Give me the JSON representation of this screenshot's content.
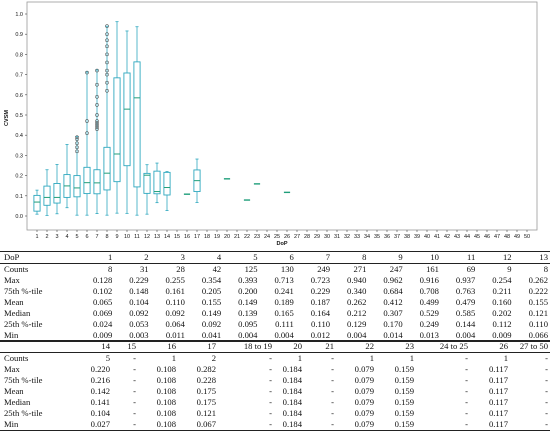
{
  "chart_data": {
    "type": "box",
    "xlabel": "DoP",
    "ylabel": "CVSM",
    "ylim": [
      0,
      1.0
    ],
    "yticks": [
      "0.0",
      "0.1",
      "0.2",
      "0.3",
      "0.4",
      "0.5",
      "0.6",
      "0.7",
      "0.8",
      "0.9",
      "1.0"
    ],
    "xticks": [
      "1",
      "2",
      "3",
      "4",
      "5",
      "6",
      "7",
      "8",
      "9",
      "10",
      "11",
      "12",
      "13",
      "14",
      "15",
      "16",
      "17",
      "18",
      "19",
      "20",
      "21",
      "22",
      "23",
      "24",
      "25",
      "26",
      "27",
      "28",
      "29",
      "30",
      "31",
      "32",
      "33",
      "34",
      "35",
      "36",
      "37",
      "38",
      "39",
      "40",
      "41",
      "42",
      "43",
      "44",
      "45",
      "46",
      "47",
      "48",
      "49",
      "50"
    ],
    "box_color": "#2fa8bf",
    "median_color": "#1f9e7a",
    "boxes": [
      {
        "x": 1,
        "min": 0.009,
        "q1": 0.024,
        "median": 0.069,
        "q3": 0.102,
        "max": 0.128,
        "outliers": []
      },
      {
        "x": 2,
        "min": 0.003,
        "q1": 0.053,
        "median": 0.092,
        "q3": 0.148,
        "max": 0.229,
        "outliers": []
      },
      {
        "x": 3,
        "min": 0.011,
        "q1": 0.064,
        "median": 0.092,
        "q3": 0.161,
        "max": 0.255,
        "outliers": []
      },
      {
        "x": 4,
        "min": 0.041,
        "q1": 0.092,
        "median": 0.149,
        "q3": 0.205,
        "max": 0.354,
        "outliers": []
      },
      {
        "x": 5,
        "min": 0.004,
        "q1": 0.095,
        "median": 0.139,
        "q3": 0.2,
        "max": 0.393,
        "outliers": [
          0.32,
          0.34,
          0.36,
          0.38,
          0.39
        ]
      },
      {
        "x": 6,
        "min": 0.004,
        "q1": 0.111,
        "median": 0.165,
        "q3": 0.241,
        "max": 0.713,
        "outliers": [
          0.41,
          0.47,
          0.71
        ]
      },
      {
        "x": 7,
        "min": 0.012,
        "q1": 0.11,
        "median": 0.164,
        "q3": 0.229,
        "max": 0.723,
        "outliers": [
          0.43,
          0.44,
          0.45,
          0.46,
          0.47,
          0.5,
          0.55,
          0.59,
          0.65,
          0.72
        ]
      },
      {
        "x": 8,
        "min": 0.004,
        "q1": 0.129,
        "median": 0.212,
        "q3": 0.34,
        "max": 0.94,
        "outliers": [
          0.62,
          0.66,
          0.7,
          0.72,
          0.76,
          0.8,
          0.84,
          0.87,
          0.9,
          0.94
        ]
      },
      {
        "x": 9,
        "min": 0.014,
        "q1": 0.17,
        "median": 0.307,
        "q3": 0.684,
        "max": 0.962,
        "outliers": []
      },
      {
        "x": 10,
        "min": 0.013,
        "q1": 0.249,
        "median": 0.529,
        "q3": 0.708,
        "max": 0.916,
        "outliers": []
      },
      {
        "x": 11,
        "min": 0.004,
        "q1": 0.144,
        "median": 0.585,
        "q3": 0.763,
        "max": 0.937,
        "outliers": []
      },
      {
        "x": 12,
        "min": 0.009,
        "q1": 0.112,
        "median": 0.202,
        "q3": 0.211,
        "max": 0.254,
        "outliers": []
      },
      {
        "x": 13,
        "min": 0.066,
        "q1": 0.11,
        "median": 0.121,
        "q3": 0.222,
        "max": 0.262,
        "outliers": []
      },
      {
        "x": 14,
        "min": 0.027,
        "q1": 0.104,
        "median": 0.141,
        "q3": 0.216,
        "max": 0.22,
        "outliers": []
      },
      {
        "x": 16,
        "min": 0.108,
        "q1": 0.108,
        "median": 0.108,
        "q3": 0.108,
        "max": 0.108,
        "outliers": []
      },
      {
        "x": 17,
        "min": 0.067,
        "q1": 0.121,
        "median": 0.175,
        "q3": 0.228,
        "max": 0.282,
        "outliers": []
      },
      {
        "x": 20,
        "min": 0.184,
        "q1": 0.184,
        "median": 0.184,
        "q3": 0.184,
        "max": 0.184,
        "outliers": []
      },
      {
        "x": 22,
        "min": 0.079,
        "q1": 0.079,
        "median": 0.079,
        "q3": 0.079,
        "max": 0.079,
        "outliers": []
      },
      {
        "x": 23,
        "min": 0.159,
        "q1": 0.159,
        "median": 0.159,
        "q3": 0.159,
        "max": 0.159,
        "outliers": []
      },
      {
        "x": 26,
        "min": 0.117,
        "q1": 0.117,
        "median": 0.117,
        "q3": 0.117,
        "max": 0.117,
        "outliers": []
      }
    ]
  },
  "table_top": {
    "header": [
      "DoP",
      "1",
      "2",
      "3",
      "4",
      "5",
      "6",
      "7",
      "8",
      "9",
      "10",
      "11",
      "12",
      "13"
    ],
    "rows": [
      {
        "label": "Counts",
        "values": [
          "8",
          "31",
          "28",
          "42",
          "125",
          "130",
          "249",
          "271",
          "247",
          "161",
          "69",
          "9",
          "8"
        ]
      },
      {
        "label": "Max",
        "values": [
          "0.128",
          "0.229",
          "0.255",
          "0.354",
          "0.393",
          "0.713",
          "0.723",
          "0.940",
          "0.962",
          "0.916",
          "0.937",
          "0.254",
          "0.262"
        ]
      },
      {
        "label": "75th %-tile",
        "values": [
          "0.102",
          "0.148",
          "0.161",
          "0.205",
          "0.200",
          "0.241",
          "0.229",
          "0.340",
          "0.684",
          "0.708",
          "0.763",
          "0.211",
          "0.222"
        ]
      },
      {
        "label": "Mean",
        "values": [
          "0.065",
          "0.104",
          "0.110",
          "0.155",
          "0.149",
          "0.189",
          "0.187",
          "0.262",
          "0.412",
          "0.499",
          "0.479",
          "0.160",
          "0.155"
        ]
      },
      {
        "label": "Median",
        "values": [
          "0.069",
          "0.092",
          "0.092",
          "0.149",
          "0.139",
          "0.165",
          "0.164",
          "0.212",
          "0.307",
          "0.529",
          "0.585",
          "0.202",
          "0.121"
        ]
      },
      {
        "label": "25th %-tile",
        "values": [
          "0.024",
          "0.053",
          "0.064",
          "0.092",
          "0.095",
          "0.111",
          "0.110",
          "0.129",
          "0.170",
          "0.249",
          "0.144",
          "0.112",
          "0.110"
        ]
      },
      {
        "label": "Min",
        "values": [
          "0.009",
          "0.003",
          "0.011",
          "0.041",
          "0.004",
          "0.004",
          "0.012",
          "0.004",
          "0.014",
          "0.013",
          "0.004",
          "0.009",
          "0.066"
        ]
      }
    ]
  },
  "table_bottom": {
    "header": [
      "14",
      "15",
      "16",
      "17",
      "18 to 19",
      "20",
      "21",
      "22",
      "23",
      "24 to 25",
      "26",
      "27 to 50"
    ],
    "rows": [
      {
        "label": "Counts",
        "values": [
          "5",
          "-",
          "1",
          "2",
          "-",
          "1",
          "-",
          "1",
          "1",
          "-",
          "1",
          "-"
        ]
      },
      {
        "label": "Max",
        "values": [
          "0.220",
          "-",
          "0.108",
          "0.282",
          "-",
          "0.184",
          "-",
          "0.079",
          "0.159",
          "-",
          "0.117",
          "-"
        ]
      },
      {
        "label": "75th %-tile",
        "values": [
          "0.216",
          "-",
          "0.108",
          "0.228",
          "-",
          "0.184",
          "-",
          "0.079",
          "0.159",
          "-",
          "0.117",
          "-"
        ]
      },
      {
        "label": "Mean",
        "values": [
          "0.142",
          "-",
          "0.108",
          "0.175",
          "-",
          "0.184",
          "-",
          "0.079",
          "0.159",
          "-",
          "0.117",
          "-"
        ]
      },
      {
        "label": "Median",
        "values": [
          "0.141",
          "-",
          "0.108",
          "0.175",
          "-",
          "0.184",
          "-",
          "0.079",
          "0.159",
          "-",
          "0.117",
          "-"
        ]
      },
      {
        "label": "25th %-tile",
        "values": [
          "0.104",
          "-",
          "0.108",
          "0.121",
          "-",
          "0.184",
          "-",
          "0.079",
          "0.159",
          "-",
          "0.117",
          "-"
        ]
      },
      {
        "label": "Min",
        "values": [
          "0.027",
          "-",
          "0.108",
          "0.067",
          "-",
          "0.184",
          "-",
          "0.079",
          "0.159",
          "-",
          "0.117",
          "-"
        ]
      }
    ]
  }
}
